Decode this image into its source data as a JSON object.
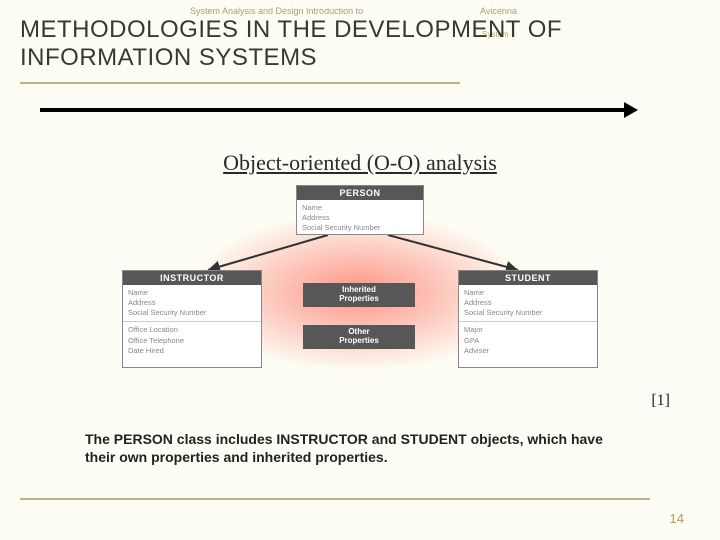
{
  "header": {
    "course": "System Analysis and Design  Introduction to",
    "brand": "Avicenna",
    "sys": "System"
  },
  "title": {
    "line1": "METHODOLOGIES IN THE DEVELOPMENT OF",
    "line2": "INFORMATION SYSTEMS"
  },
  "subtitle": "Object-oriented (O-O) analysis",
  "diagram": {
    "person": {
      "header": "PERSON",
      "fields": "Name\nAddress\nSocial Security Number"
    },
    "instructor": {
      "header": "INSTRUCTOR",
      "fields1": "Name\nAddress\nSocial Security Number",
      "fields2": "Office Location\nOffice Telephone\nDate Hired"
    },
    "student": {
      "header": "STUDENT",
      "fields1": "Name\nAddress\nSocial Security Number",
      "fields2": "Major\nGPA\nAdviser"
    },
    "inh_label": "Inherited\nProperties",
    "oth_label": "Other\nProperties"
  },
  "reference": "[1]",
  "caption": "The PERSON class includes INSTRUCTOR and STUDENT objects, which have their own properties and inherited properties.",
  "page_number": "14"
}
